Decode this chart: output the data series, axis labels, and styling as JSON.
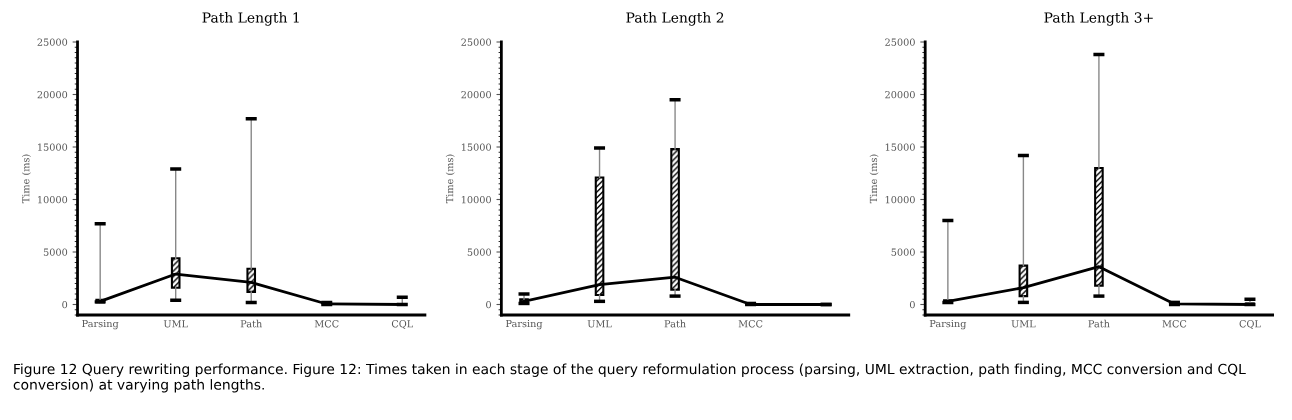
{
  "chart_data": [
    {
      "type": "box",
      "title": "Path Length 1",
      "ylabel": "Time (ms)",
      "categories": [
        "Parsing",
        "UML",
        "Path",
        "MCC",
        "CQL"
      ],
      "boxes": [
        {
          "low": 250,
          "q1": 200,
          "median": 300,
          "q3": 450,
          "high": 7700
        },
        {
          "low": 400,
          "q1": 1600,
          "median": 2900,
          "q3": 4400,
          "high": 12900
        },
        {
          "low": 200,
          "q1": 1200,
          "median": 2100,
          "q3": 3400,
          "high": 17700
        },
        {
          "low": 0,
          "q1": 0,
          "median": 50,
          "q3": 150,
          "high": 200
        },
        {
          "low": 0,
          "q1": 0,
          "median": 0,
          "q3": 50,
          "high": 700
        }
      ],
      "series": [
        {
          "type": "line",
          "color": "#000000",
          "values": [
            300,
            2900,
            2100,
            50,
            0
          ]
        }
      ],
      "color": "#000000",
      "ylim": [
        -1000,
        25000
      ],
      "yticks": [
        0,
        5000,
        10000,
        15000,
        20000,
        25000
      ],
      "grid": false,
      "marker": "none",
      "line_style": "solid",
      "annotations": [
        "Figure 12 Query rewriting performance. Figure 12: Times taken in each stage of the query reformulation process (parsing, UML extraction, path finding, MCC conversion and CQL conversion) at varying path lengths."
      ]
    },
    {
      "type": "box",
      "title": "Path Length 2",
      "ylabel": "Time (ms)",
      "categories": [
        "Parsing",
        "UML",
        "Path",
        "MCC",
        null
      ],
      "boxes": [
        {
          "low": 100,
          "q1": 200,
          "median": 300,
          "q3": 500,
          "high": 1000
        },
        {
          "low": 300,
          "q1": 900,
          "median": 1900,
          "q3": 12100,
          "high": 14900
        },
        {
          "low": 800,
          "q1": 1400,
          "median": 2600,
          "q3": 14800,
          "high": 19500
        },
        {
          "low": 0,
          "q1": 0,
          "median": 0,
          "q3": 50,
          "high": 100
        },
        {
          "low": 0,
          "q1": 0,
          "median": 0,
          "q3": 0,
          "high": 0
        }
      ],
      "series": [
        {
          "type": "line",
          "color": "#000000",
          "values": [
            300,
            1900,
            2600,
            0,
            0
          ]
        }
      ],
      "color": "#000000",
      "ylim": [
        -1000,
        25000
      ],
      "yticks": [
        0,
        5000,
        10000,
        15000,
        20000,
        25000
      ],
      "grid": false,
      "marker": "none",
      "line_style": "solid"
    },
    {
      "type": "box",
      "title": "Path Length 3+",
      "ylabel": "Time (ms)",
      "categories": [
        "Parsing",
        "UML",
        "Path",
        "MCC",
        "CQL"
      ],
      "boxes": [
        {
          "low": 200,
          "q1": 200,
          "median": 300,
          "q3": 400,
          "high": 8000
        },
        {
          "low": 200,
          "q1": 800,
          "median": 1600,
          "q3": 3700,
          "high": 14200
        },
        {
          "low": 800,
          "q1": 1800,
          "median": 3600,
          "q3": 13000,
          "high": 23800
        },
        {
          "low": 0,
          "q1": 0,
          "median": 50,
          "q3": 200,
          "high": 200
        },
        {
          "low": 0,
          "q1": 0,
          "median": 0,
          "q3": 100,
          "high": 500
        }
      ],
      "series": [
        {
          "type": "line",
          "color": "#000000",
          "values": [
            300,
            1600,
            3600,
            50,
            0
          ]
        }
      ],
      "color": "#000000",
      "ylim": [
        -1000,
        25000
      ],
      "yticks": [
        0,
        5000,
        10000,
        15000,
        20000,
        25000
      ],
      "grid": false,
      "marker": "none",
      "line_style": "solid"
    }
  ]
}
